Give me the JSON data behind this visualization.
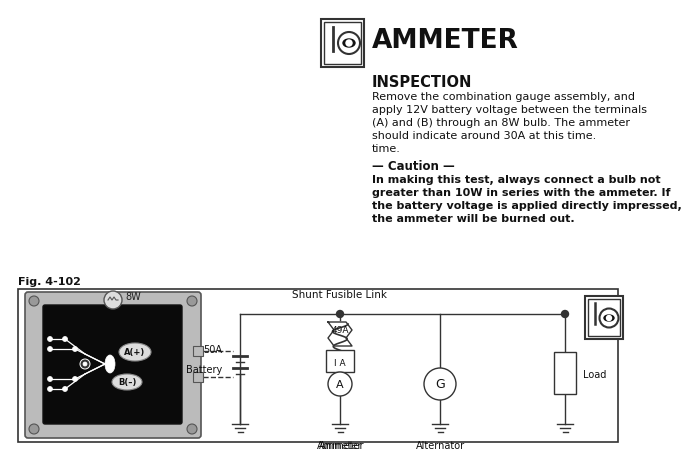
{
  "title": "AMMETER",
  "subtitle": "INSPECTION",
  "body_text_lines": [
    "Remove the combination gauge assembly, and",
    "apply 12V battery voltage between the terminals",
    "(A) and (B) through an 8W bulb. The ammeter",
    "should indicate around 30A at this time.",
    "time."
  ],
  "caution_header": "— Caution —",
  "caution_lines": [
    "In making this test, always connect a bulb not",
    "greater than 10W in series with the ammeter. If",
    "the battery voltage is applied directly impressed,",
    "the ammeter will be burned out."
  ],
  "fig_label": "Fig. 4-102",
  "label_8W": "8W",
  "label_50A": "50A",
  "label_battery": "Battery",
  "label_shunt": "Shunt Fusible Link",
  "label_49A": "49A",
  "label_1A": "I A",
  "label_A": "A",
  "label_G": "G",
  "label_ammeter": "Ammeter",
  "label_alternator": "Alternator",
  "label_load": "Load",
  "label_Aplus": "A(+)",
  "label_Bminus": "B(–)",
  "bg_color": "#ffffff",
  "text_color": "#111111",
  "line_color": "#333333",
  "gauge_bg": "#0a0a0a",
  "bracket_color": "#c8c8c8"
}
